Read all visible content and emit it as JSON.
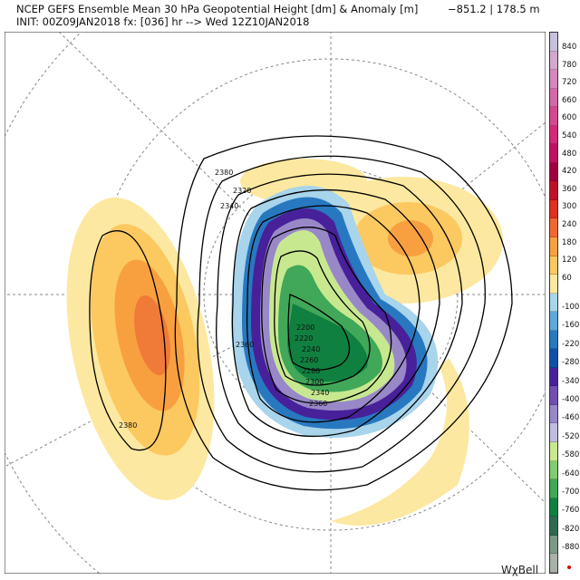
{
  "header": {
    "title": "NCEP GEFS Ensemble Mean 30 hPa Geopotential Height [dm] & Anomaly [m]",
    "init": "INIT: 00Z09JAN2018 fx: [036] hr --> Wed 12Z10JAN2018",
    "range": "−851.2 | 178.5 m"
  },
  "colorbar": {
    "positive_labels": [
      "840",
      "780",
      "720",
      "660",
      "600",
      "540",
      "480",
      "420",
      "360",
      "300",
      "240",
      "180",
      "120",
      "60"
    ],
    "negative_labels": [
      "-100",
      "-160",
      "-220",
      "-280",
      "-340",
      "-400",
      "-460",
      "-520",
      "-580",
      "-640",
      "-700",
      "-760",
      "-820",
      "-880"
    ],
    "positive_colors": [
      "#c8c0dc",
      "#d4a8cc",
      "#d488bc",
      "#d468a8",
      "#d44890",
      "#d42878",
      "#c01060",
      "#a00040",
      "#c01028",
      "#e03020",
      "#f06830",
      "#f8a040",
      "#fcc860",
      "#fce8a0"
    ],
    "negative_colors": [
      "#a8d4ec",
      "#60a8d8",
      "#2878c0",
      "#1050a8",
      "#48209a",
      "#7050b0",
      "#9888c8",
      "#c0bce0",
      "#c8e890",
      "#80cc70",
      "#40a858",
      "#108040",
      "#306850",
      "#7a9a88",
      "#a8b0a8"
    ]
  },
  "contour_labels": [
    "2380",
    "2320",
    "2340",
    "2200",
    "2220",
    "2240",
    "2260",
    "2280",
    "2300",
    "2360",
    "2340",
    "2360",
    "2380"
  ],
  "logo": "WχBell"
}
